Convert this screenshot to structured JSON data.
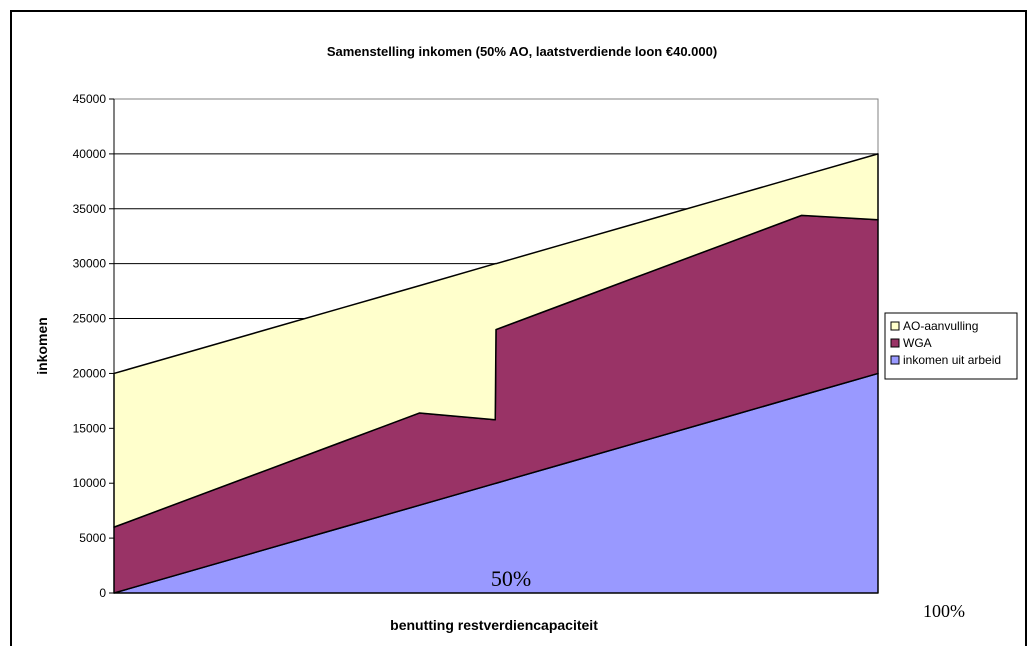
{
  "chart_data": {
    "type": "area",
    "stacked": true,
    "title": "Samenstelling inkomen (50% AO, laatstverdiende loon €40.000)",
    "xlabel": "benutting restverdiencapaciteit",
    "ylabel": "inkomen",
    "ylim": [
      0,
      45000
    ],
    "yticks": [
      0,
      5000,
      10000,
      15000,
      20000,
      25000,
      30000,
      35000,
      40000,
      45000
    ],
    "grid": true,
    "legend_position": "right",
    "x": [
      0,
      10,
      20,
      30,
      40,
      49.9,
      50,
      60,
      70,
      80,
      90,
      100
    ],
    "series": [
      {
        "name": "inkomen uit arbeid",
        "color": "#9999ff",
        "values": [
          0,
          2000,
          4000,
          6000,
          8000,
          9980,
          10000,
          12000,
          14000,
          16000,
          18000,
          20000
        ]
      },
      {
        "name": "WGA",
        "color": "#993366",
        "values": [
          6000,
          6600,
          7200,
          7800,
          8400,
          5800,
          14000,
          14600,
          15200,
          15800,
          16400,
          14000
        ]
      },
      {
        "name": "AO-aanvulling",
        "color": "#ffffcc",
        "values": [
          14000,
          13400,
          12800,
          12200,
          11600,
          14220,
          6000,
          5400,
          4800,
          4200,
          3600,
          6000
        ]
      }
    ],
    "annotations": [
      "50%",
      "100%"
    ]
  }
}
